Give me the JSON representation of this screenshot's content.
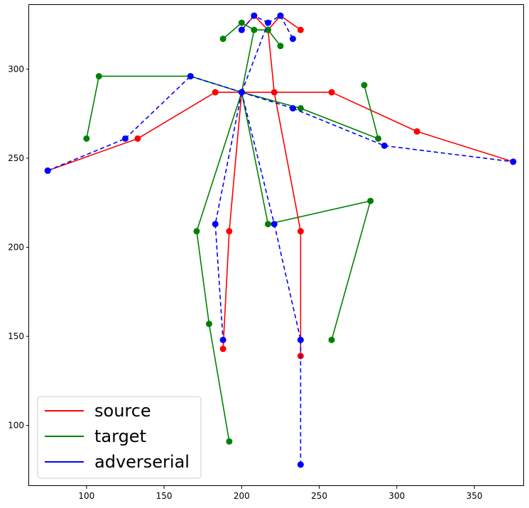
{
  "chart_data": {
    "type": "line",
    "title": "",
    "xlabel": "",
    "ylabel": "",
    "xlim": [
      63,
      382
    ],
    "ylim": [
      66,
      336
    ],
    "xticks": [
      100,
      150,
      200,
      250,
      300,
      350
    ],
    "yticks": [
      100,
      150,
      200,
      250,
      300
    ],
    "grid": false,
    "legend_position": "lower-left",
    "series": [
      {
        "name": "source",
        "color": "#ff0000",
        "linestyle": "solid",
        "points": [
          {
            "x": 75,
            "y": 243
          },
          {
            "x": 133,
            "y": 261
          },
          {
            "x": 183,
            "y": 287
          },
          {
            "x": 200,
            "y": 287
          },
          {
            "x": 221,
            "y": 287
          },
          {
            "x": 258,
            "y": 287
          },
          {
            "x": 313,
            "y": 265
          },
          {
            "x": 375,
            "y": 248
          },
          {
            "x": 192,
            "y": 209
          },
          {
            "x": 188,
            "y": 143
          },
          {
            "x": 238,
            "y": 209
          },
          {
            "x": 238,
            "y": 139
          },
          {
            "x": 217,
            "y": 322
          },
          {
            "x": 208,
            "y": 330
          },
          {
            "x": 225,
            "y": 330
          },
          {
            "x": 200,
            "y": 322
          },
          {
            "x": 238,
            "y": 322
          }
        ],
        "segments": [
          [
            0,
            1
          ],
          [
            1,
            2
          ],
          [
            2,
            3
          ],
          [
            3,
            4
          ],
          [
            4,
            5
          ],
          [
            5,
            6
          ],
          [
            6,
            7
          ],
          [
            3,
            8
          ],
          [
            8,
            9
          ],
          [
            4,
            10
          ],
          [
            10,
            11
          ],
          [
            4,
            12
          ],
          [
            12,
            13
          ],
          [
            12,
            14
          ],
          [
            13,
            15
          ],
          [
            14,
            16
          ]
        ]
      },
      {
        "name": "target",
        "color": "#008000",
        "linestyle": "solid",
        "points": [
          {
            "x": 100,
            "y": 261
          },
          {
            "x": 108,
            "y": 296
          },
          {
            "x": 167,
            "y": 296
          },
          {
            "x": 200,
            "y": 287
          },
          {
            "x": 238,
            "y": 278
          },
          {
            "x": 288,
            "y": 261
          },
          {
            "x": 279,
            "y": 291
          },
          {
            "x": 171,
            "y": 209
          },
          {
            "x": 179,
            "y": 157
          },
          {
            "x": 192,
            "y": 91
          },
          {
            "x": 217,
            "y": 213
          },
          {
            "x": 283,
            "y": 226
          },
          {
            "x": 258,
            "y": 148
          },
          {
            "x": 208,
            "y": 322
          },
          {
            "x": 200,
            "y": 326
          },
          {
            "x": 217,
            "y": 322
          },
          {
            "x": 188,
            "y": 317
          },
          {
            "x": 225,
            "y": 313
          }
        ],
        "segments": [
          [
            0,
            1
          ],
          [
            1,
            2
          ],
          [
            2,
            3
          ],
          [
            3,
            4
          ],
          [
            4,
            5
          ],
          [
            5,
            6
          ],
          [
            3,
            7
          ],
          [
            7,
            8
          ],
          [
            8,
            9
          ],
          [
            3,
            10
          ],
          [
            10,
            11
          ],
          [
            11,
            12
          ],
          [
            3,
            13
          ],
          [
            13,
            14
          ],
          [
            13,
            15
          ],
          [
            14,
            16
          ],
          [
            15,
            17
          ]
        ]
      },
      {
        "name": "adverserial",
        "color": "#0000ff",
        "linestyle": "dashed",
        "points": [
          {
            "x": 75,
            "y": 243
          },
          {
            "x": 125,
            "y": 261
          },
          {
            "x": 167,
            "y": 296
          },
          {
            "x": 200,
            "y": 287
          },
          {
            "x": 233,
            "y": 278
          },
          {
            "x": 292,
            "y": 257
          },
          {
            "x": 375,
            "y": 248
          },
          {
            "x": 183,
            "y": 213
          },
          {
            "x": 188,
            "y": 148
          },
          {
            "x": 221,
            "y": 213
          },
          {
            "x": 238,
            "y": 148
          },
          {
            "x": 238,
            "y": 78
          },
          {
            "x": 217,
            "y": 326
          },
          {
            "x": 208,
            "y": 330
          },
          {
            "x": 225,
            "y": 330
          },
          {
            "x": 200,
            "y": 322
          },
          {
            "x": 233,
            "y": 317
          }
        ],
        "segments": [
          [
            0,
            1
          ],
          [
            1,
            2
          ],
          [
            2,
            3
          ],
          [
            3,
            4
          ],
          [
            4,
            5
          ],
          [
            5,
            6
          ],
          [
            3,
            7
          ],
          [
            7,
            8
          ],
          [
            3,
            9
          ],
          [
            9,
            10
          ],
          [
            10,
            11
          ],
          [
            3,
            12
          ],
          [
            12,
            13
          ],
          [
            12,
            14
          ],
          [
            13,
            15
          ],
          [
            14,
            16
          ]
        ]
      }
    ],
    "legend": [
      "source",
      "target",
      "adverserial"
    ]
  }
}
